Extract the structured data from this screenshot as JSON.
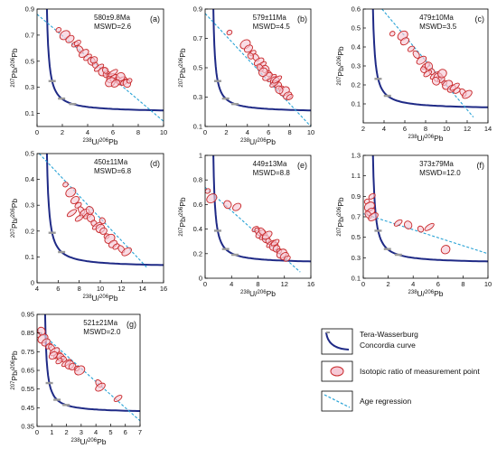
{
  "figure": {
    "legend": {
      "concordia_line1": "Tera-Wasserburg",
      "concordia_line2": "Concordia curve",
      "isotopic": "Isotopic ratio of measurement point",
      "regression": "Age regression"
    }
  },
  "colors": {
    "concordia": "#1f2a86",
    "regression": "#29a3d6",
    "ellipse_stroke": "#c8282a",
    "ellipse_fill": "#f6c9d6",
    "axis": "#000000"
  },
  "chart_data": [
    {
      "id": "a",
      "type": "scatter",
      "panel_label": "(a)",
      "age": "580±9.8Ma",
      "mswd": "MSWD=2.6",
      "xlabel": "238U/206Pb",
      "ylabel": "207Pb/206Pb",
      "xlim": [
        0,
        10
      ],
      "ylim": [
        0,
        0.9
      ],
      "xticks": [
        0,
        2,
        4,
        6,
        8,
        10
      ],
      "yticks": [
        0.1,
        0.3,
        0.5,
        0.7,
        0.9
      ],
      "regression": [
        [
          0,
          0.86
        ],
        [
          10,
          0.04
        ]
      ],
      "concordia_ticks": [
        "2800",
        "1800",
        "800"
      ],
      "points": [
        [
          1.7,
          0.74
        ],
        [
          2.2,
          0.7
        ],
        [
          2.6,
          0.67
        ],
        [
          3.0,
          0.63
        ],
        [
          3.4,
          0.59
        ],
        [
          3.7,
          0.56
        ],
        [
          4.0,
          0.53
        ],
        [
          4.3,
          0.5
        ],
        [
          4.6,
          0.47
        ],
        [
          4.9,
          0.45
        ],
        [
          5.2,
          0.42
        ],
        [
          5.5,
          0.4
        ],
        [
          5.7,
          0.39
        ],
        [
          5.9,
          0.37
        ],
        [
          6.1,
          0.37
        ],
        [
          6.3,
          0.36
        ],
        [
          6.5,
          0.35
        ],
        [
          6.7,
          0.35
        ],
        [
          6.9,
          0.34
        ],
        [
          7.1,
          0.33
        ],
        [
          5.4,
          0.43
        ],
        [
          6.0,
          0.41
        ],
        [
          6.6,
          0.38
        ],
        [
          4.5,
          0.51
        ],
        [
          7.3,
          0.35
        ],
        [
          5.8,
          0.34
        ],
        [
          6.2,
          0.33
        ],
        [
          3.2,
          0.64
        ]
      ]
    },
    {
      "id": "b",
      "type": "scatter",
      "panel_label": "(b)",
      "age": "579±11Ma",
      "mswd": "MSWD=4.5",
      "xlabel": "238U/206Pb",
      "ylabel": "207Pb/206Pb",
      "xlim": [
        0,
        10
      ],
      "ylim": [
        0.1,
        0.9
      ],
      "xticks": [
        0,
        2,
        4,
        6,
        8,
        10
      ],
      "yticks": [
        0.1,
        0.3,
        0.5,
        0.7,
        0.9
      ],
      "regression": [
        [
          0,
          0.87
        ],
        [
          10,
          0.1
        ]
      ],
      "concordia_ticks": [
        "2800",
        "1800",
        "800"
      ],
      "points": [
        [
          2.3,
          0.74
        ],
        [
          3.8,
          0.66
        ],
        [
          4.1,
          0.63
        ],
        [
          4.5,
          0.6
        ],
        [
          4.8,
          0.57
        ],
        [
          5.1,
          0.54
        ],
        [
          5.4,
          0.52
        ],
        [
          5.7,
          0.49
        ],
        [
          6.0,
          0.46
        ],
        [
          6.3,
          0.43
        ],
        [
          6.6,
          0.41
        ],
        [
          6.9,
          0.38
        ],
        [
          7.2,
          0.36
        ],
        [
          7.5,
          0.34
        ],
        [
          7.8,
          0.31
        ],
        [
          8.0,
          0.3
        ],
        [
          5.2,
          0.5
        ],
        [
          5.9,
          0.44
        ],
        [
          6.5,
          0.39
        ],
        [
          7.0,
          0.35
        ],
        [
          4.3,
          0.58
        ],
        [
          6.8,
          0.42
        ],
        [
          5.5,
          0.47
        ]
      ]
    },
    {
      "id": "c",
      "type": "scatter",
      "panel_label": "(c)",
      "age": "479±10Ma",
      "mswd": "MSWD=3.5",
      "xlabel": "238U/206Pb",
      "ylabel": "207Pb/206Pb",
      "xlim": [
        2,
        14
      ],
      "ylim": [
        0,
        0.6
      ],
      "xticks": [
        2,
        4,
        6,
        8,
        10,
        12,
        14
      ],
      "yticks": [
        0.1,
        0.2,
        0.3,
        0.4,
        0.5,
        0.6
      ],
      "regression": [
        [
          3.8,
          0.6
        ],
        [
          12.6,
          0.03
        ]
      ],
      "concordia_ticks": [
        "2800",
        "800"
      ],
      "points": [
        [
          4.8,
          0.47
        ],
        [
          5.8,
          0.46
        ],
        [
          6.0,
          0.43
        ],
        [
          6.6,
          0.39
        ],
        [
          7.1,
          0.36
        ],
        [
          7.6,
          0.33
        ],
        [
          8.0,
          0.3
        ],
        [
          8.3,
          0.3
        ],
        [
          8.6,
          0.27
        ],
        [
          8.9,
          0.25
        ],
        [
          9.2,
          0.24
        ],
        [
          9.5,
          0.23
        ],
        [
          9.8,
          0.21
        ],
        [
          10.1,
          0.2
        ],
        [
          10.5,
          0.18
        ],
        [
          11.0,
          0.17
        ],
        [
          11.6,
          0.16
        ],
        [
          12.0,
          0.15
        ],
        [
          8.2,
          0.26
        ],
        [
          9.0,
          0.22
        ],
        [
          7.8,
          0.28
        ],
        [
          10.8,
          0.19
        ],
        [
          9.6,
          0.26
        ]
      ]
    },
    {
      "id": "d",
      "type": "scatter",
      "panel_label": "(d)",
      "age": "450±11Ma",
      "mswd": "MSWD=6.8",
      "xlabel": "238U/206Pb",
      "ylabel": "207Pb/206Pb",
      "xlim": [
        4,
        16
      ],
      "ylim": [
        0,
        0.5
      ],
      "xticks": [
        4,
        6,
        8,
        10,
        12,
        14,
        16
      ],
      "yticks": [
        0,
        0.1,
        0.2,
        0.3,
        0.4,
        0.5
      ],
      "regression": [
        [
          4.2,
          0.5
        ],
        [
          14.4,
          0.06
        ]
      ],
      "concordia_ticks": [
        "2800",
        "800"
      ],
      "points": [
        [
          6.7,
          0.38
        ],
        [
          7.2,
          0.35
        ],
        [
          7.6,
          0.32
        ],
        [
          7.9,
          0.3
        ],
        [
          8.2,
          0.28
        ],
        [
          8.5,
          0.27
        ],
        [
          8.8,
          0.26
        ],
        [
          9.1,
          0.25
        ],
        [
          9.4,
          0.23
        ],
        [
          9.7,
          0.22
        ],
        [
          10.0,
          0.21
        ],
        [
          10.3,
          0.2
        ],
        [
          10.6,
          0.18
        ],
        [
          10.9,
          0.17
        ],
        [
          11.2,
          0.15
        ],
        [
          11.5,
          0.14
        ],
        [
          12.0,
          0.13
        ],
        [
          12.5,
          0.12
        ],
        [
          8.0,
          0.25
        ],
        [
          9.0,
          0.28
        ],
        [
          10.2,
          0.24
        ],
        [
          7.3,
          0.27
        ]
      ]
    },
    {
      "id": "e",
      "type": "scatter",
      "panel_label": "(e)",
      "age": "449±13Ma",
      "mswd": "MSWD=8.8",
      "xlabel": "238U/206Pb",
      "ylabel": "207Pb/206Pb",
      "xlim": [
        0,
        16
      ],
      "ylim": [
        0,
        1.0
      ],
      "xticks": [
        0,
        4,
        8,
        12,
        16
      ],
      "yticks": [
        0,
        0.2,
        0.4,
        0.6,
        0.8,
        1.0
      ],
      "regression": [
        [
          0,
          0.74
        ],
        [
          14.4,
          0.05
        ]
      ],
      "concordia_ticks": [
        "2800",
        "1800",
        "800"
      ],
      "points": [
        [
          0.4,
          0.71
        ],
        [
          1.0,
          0.65
        ],
        [
          4.8,
          0.58
        ],
        [
          7.6,
          0.4
        ],
        [
          8.0,
          0.38
        ],
        [
          8.4,
          0.36
        ],
        [
          8.8,
          0.34
        ],
        [
          9.2,
          0.32
        ],
        [
          9.6,
          0.3
        ],
        [
          10.0,
          0.28
        ],
        [
          10.4,
          0.26
        ],
        [
          10.8,
          0.24
        ],
        [
          11.2,
          0.22
        ],
        [
          11.6,
          0.2
        ],
        [
          12.0,
          0.18
        ],
        [
          12.4,
          0.16
        ],
        [
          8.6,
          0.38
        ],
        [
          9.4,
          0.35
        ],
        [
          10.6,
          0.29
        ],
        [
          3.4,
          0.6
        ]
      ]
    },
    {
      "id": "f",
      "type": "scatter",
      "panel_label": "(f)",
      "age": "373±79Ma",
      "mswd": "MSWD=12.0",
      "xlabel": "238U/206Pb",
      "ylabel": "207Pb/206Pb",
      "xlim": [
        0,
        10
      ],
      "ylim": [
        0.1,
        1.3
      ],
      "xticks": [
        0,
        2,
        4,
        6,
        8,
        10
      ],
      "yticks": [
        0.1,
        0.3,
        0.5,
        0.7,
        0.9,
        1.1,
        1.3
      ],
      "regression": [
        [
          0,
          0.73
        ],
        [
          10,
          0.34
        ]
      ],
      "concordia_ticks": [
        "2800",
        "1800",
        "800"
      ],
      "points": [
        [
          0.3,
          0.85
        ],
        [
          0.5,
          0.8
        ],
        [
          0.6,
          0.75
        ],
        [
          0.7,
          0.9
        ],
        [
          0.4,
          0.72
        ],
        [
          0.8,
          0.7
        ],
        [
          2.8,
          0.64
        ],
        [
          3.6,
          0.62
        ],
        [
          4.6,
          0.58
        ],
        [
          5.3,
          0.6
        ],
        [
          6.6,
          0.38
        ]
      ]
    },
    {
      "id": "g",
      "type": "scatter",
      "panel_label": "(g)",
      "age": "521±21Ma",
      "mswd": "MSWD=2.0",
      "xlabel": "238U/206Pb",
      "ylabel": "207Pb/206Pb",
      "xlim": [
        0,
        7
      ],
      "ylim": [
        0.35,
        0.95
      ],
      "xticks": [
        0,
        1,
        2,
        3,
        4,
        5,
        6,
        7
      ],
      "yticks": [
        0.35,
        0.45,
        0.55,
        0.65,
        0.75,
        0.85,
        0.95
      ],
      "regression": [
        [
          0,
          0.87
        ],
        [
          7,
          0.38
        ]
      ],
      "concordia_ticks": [
        "2800",
        "1800",
        "800"
      ],
      "points": [
        [
          0.1,
          0.84
        ],
        [
          0.4,
          0.82
        ],
        [
          0.6,
          0.8
        ],
        [
          0.8,
          0.78
        ],
        [
          1.0,
          0.77
        ],
        [
          1.2,
          0.75
        ],
        [
          1.4,
          0.73
        ],
        [
          1.6,
          0.72
        ],
        [
          1.8,
          0.71
        ],
        [
          2.0,
          0.69
        ],
        [
          2.2,
          0.68
        ],
        [
          2.4,
          0.67
        ],
        [
          2.7,
          0.66
        ],
        [
          2.9,
          0.65
        ],
        [
          1.1,
          0.73
        ],
        [
          1.5,
          0.7
        ],
        [
          4.2,
          0.58
        ],
        [
          4.3,
          0.56
        ],
        [
          5.5,
          0.5
        ],
        [
          0.3,
          0.86
        ]
      ]
    }
  ]
}
